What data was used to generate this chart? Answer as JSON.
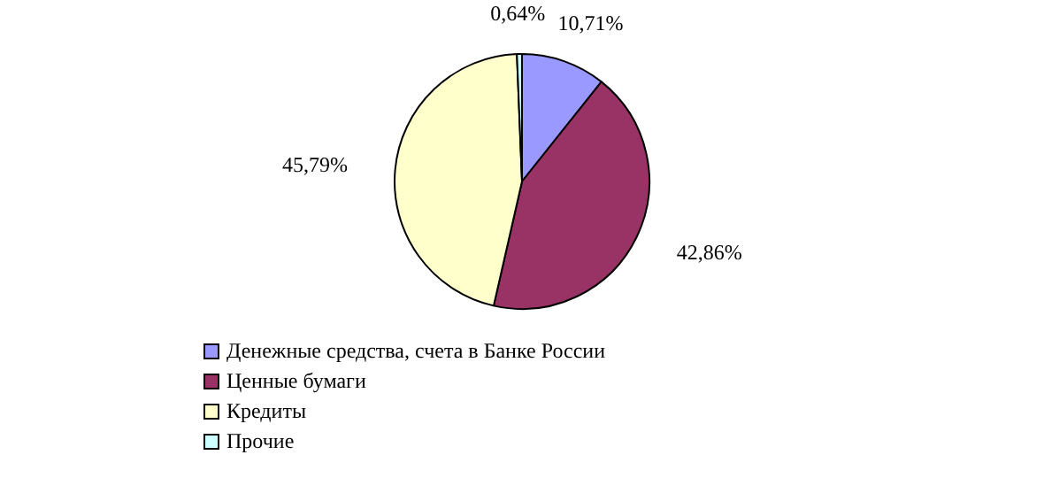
{
  "chart_data": {
    "type": "pie",
    "categories": [
      "Денежные средства, счета в Банке России",
      "Ценные бумаги",
      "Кредиты",
      "Прочие"
    ],
    "values": [
      10.71,
      42.86,
      45.79,
      0.64
    ],
    "value_labels": [
      "10,71%",
      "42,86%",
      "45,79%",
      "0,64%"
    ],
    "colors": [
      "#9999ff",
      "#993366",
      "#ffffcc",
      "#ccffff"
    ],
    "legend": "bottom"
  }
}
